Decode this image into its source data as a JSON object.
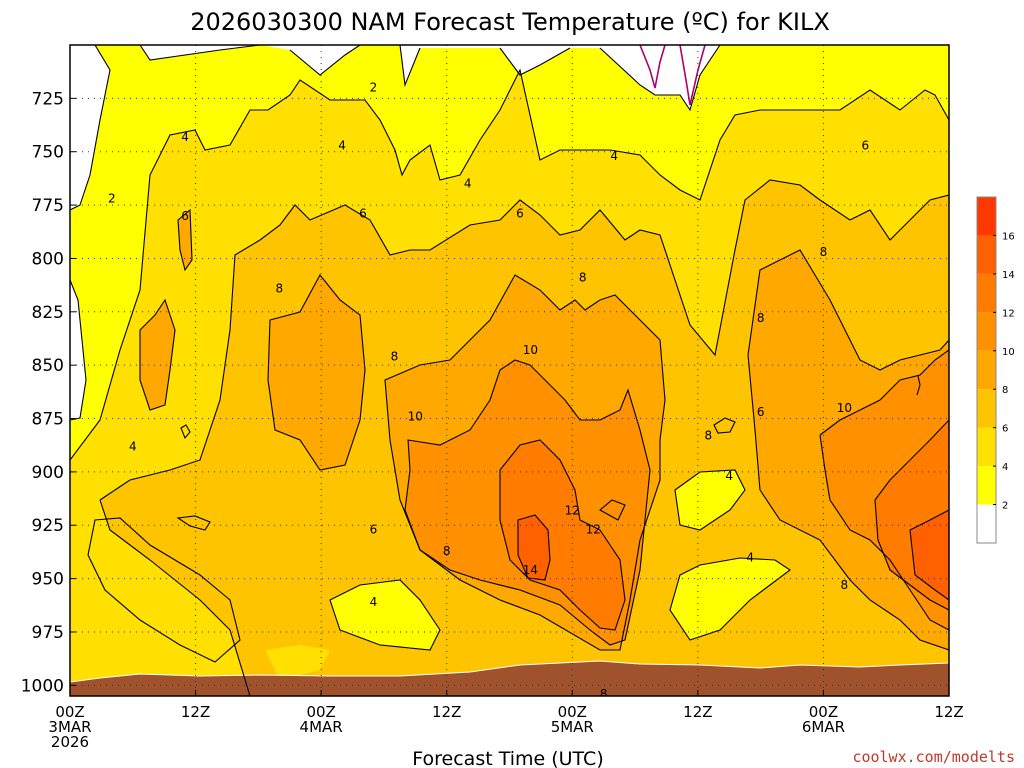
{
  "chart_data": {
    "type": "heatmap",
    "title": "2026030300 NAM Forecast Temperature (ºC) for KILX",
    "xlabel": "Forecast Time (UTC)",
    "ylabel": "",
    "credit": "coolwx.com/modelts",
    "y_axis": {
      "unit": "hPa",
      "inverted": true,
      "range": [
        700,
        1005
      ],
      "ticks": [
        725,
        750,
        775,
        800,
        825,
        850,
        875,
        900,
        925,
        950,
        975,
        1000
      ]
    },
    "x_axis": {
      "unit": "forecast hour",
      "range": [
        0,
        84
      ],
      "ticks": [
        {
          "hour": 0,
          "lines": [
            "00Z",
            "3MAR",
            "2026"
          ]
        },
        {
          "hour": 12,
          "lines": [
            "12Z"
          ]
        },
        {
          "hour": 24,
          "lines": [
            "00Z",
            "4MAR"
          ]
        },
        {
          "hour": 36,
          "lines": [
            "12Z"
          ]
        },
        {
          "hour": 48,
          "lines": [
            "00Z",
            "5MAR"
          ]
        },
        {
          "hour": 60,
          "lines": [
            "12Z"
          ]
        },
        {
          "hour": 72,
          "lines": [
            "00Z",
            "6MAR"
          ]
        },
        {
          "hour": 84,
          "lines": [
            "12Z"
          ]
        }
      ]
    },
    "grid": true,
    "colorbar": {
      "position": "right",
      "levels": [
        0,
        2,
        4,
        6,
        8,
        10,
        12,
        14,
        16,
        18
      ],
      "colors": [
        "#ffffff",
        "#ffff00",
        "#ffe000",
        "#ffc400",
        "#ffa800",
        "#ff9000",
        "#ff7c00",
        "#ff6000",
        "#ff3800"
      ],
      "tick_labels": [
        "2",
        "4",
        "6",
        "8",
        "10",
        "12",
        "14",
        "16"
      ]
    },
    "ground_color": "#a0522d",
    "contour_line_color": "#000000",
    "freezing_line_color": "#b0006a",
    "contour_labels": [
      {
        "value": "2",
        "hour": 4,
        "p": 772
      },
      {
        "value": "2",
        "hour": 29,
        "p": 720
      },
      {
        "value": "4",
        "hour": 11,
        "p": 743
      },
      {
        "value": "4",
        "hour": 26,
        "p": 747
      },
      {
        "value": "4",
        "hour": 38,
        "p": 765
      },
      {
        "value": "4",
        "hour": 52,
        "p": 752
      },
      {
        "value": "4",
        "hour": 6,
        "p": 888
      },
      {
        "value": "4",
        "hour": 29,
        "p": 961
      },
      {
        "value": "4",
        "hour": 63,
        "p": 902
      },
      {
        "value": "4",
        "hour": 65,
        "p": 940
      },
      {
        "value": "6",
        "hour": 11,
        "p": 780
      },
      {
        "value": "6",
        "hour": 28,
        "p": 779
      },
      {
        "value": "6",
        "hour": 43,
        "p": 779
      },
      {
        "value": "6",
        "hour": 76,
        "p": 747
      },
      {
        "value": "6",
        "hour": 29,
        "p": 927
      },
      {
        "value": "6",
        "hour": 66,
        "p": 872
      },
      {
        "value": "8",
        "hour": 20,
        "p": 814
      },
      {
        "value": "8",
        "hour": 31,
        "p": 846
      },
      {
        "value": "8",
        "hour": 49,
        "p": 809
      },
      {
        "value": "8",
        "hour": 66,
        "p": 828
      },
      {
        "value": "8",
        "hour": 72,
        "p": 797
      },
      {
        "value": "8",
        "hour": 61,
        "p": 883
      },
      {
        "value": "8",
        "hour": 36,
        "p": 937
      },
      {
        "value": "8",
        "hour": 51,
        "p": 1004
      },
      {
        "value": "8",
        "hour": 74,
        "p": 953
      },
      {
        "value": "10",
        "hour": 33,
        "p": 874
      },
      {
        "value": "10",
        "hour": 44,
        "p": 843
      },
      {
        "value": "10",
        "hour": 74,
        "p": 870
      },
      {
        "value": "12",
        "hour": 48,
        "p": 918
      },
      {
        "value": "12",
        "hour": 50,
        "p": 927
      },
      {
        "value": "14",
        "hour": 44,
        "p": 946
      }
    ]
  }
}
